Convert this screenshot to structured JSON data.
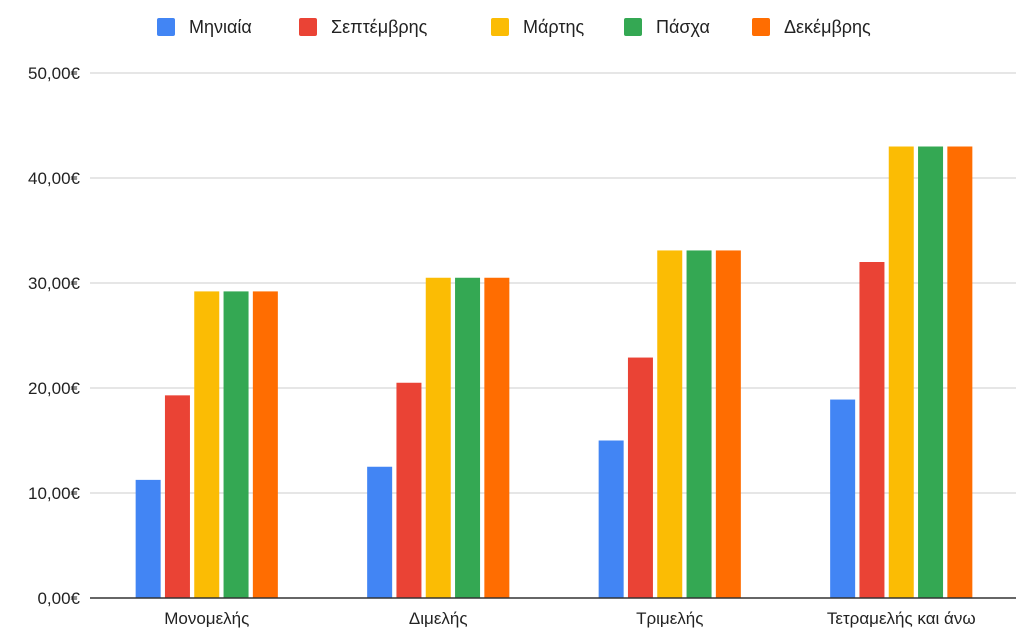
{
  "chart_data": {
    "type": "bar",
    "title": "",
    "xlabel": "",
    "ylabel": "",
    "categories": [
      "Μονομελής",
      "Διμελής",
      "Τριμελής",
      "Τετραμελής και άνω"
    ],
    "series": [
      {
        "name": "Μηνιαία",
        "color": "#4285f4",
        "values": [
          11.25,
          12.5,
          15.0,
          18.9
        ]
      },
      {
        "name": "Σεπτέμβρης",
        "color": "#ea4335",
        "values": [
          19.3,
          20.5,
          22.9,
          32.0
        ]
      },
      {
        "name": "Μάρτης",
        "color": "#fbbc04",
        "values": [
          29.2,
          30.5,
          33.1,
          43.0
        ]
      },
      {
        "name": "Πάσχα",
        "color": "#34a853",
        "values": [
          29.2,
          30.5,
          33.1,
          43.0
        ]
      },
      {
        "name": "Δεκέμβρης",
        "color": "#ff6d01",
        "values": [
          29.2,
          30.5,
          33.1,
          43.0
        ]
      }
    ],
    "ylim": [
      0,
      50
    ],
    "yticks": [
      0,
      10,
      20,
      30,
      40,
      50
    ],
    "ytick_labels": [
      "0,00€",
      "10,00€",
      "20,00€",
      "30,00€",
      "40,00€",
      "50,00€"
    ],
    "grid": true,
    "legend_position": "top"
  }
}
